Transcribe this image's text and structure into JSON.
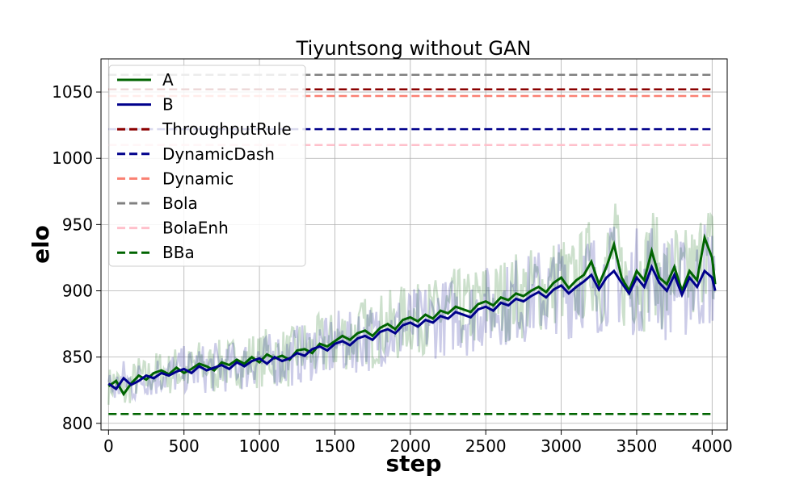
{
  "chart_data": {
    "type": "line",
    "title": "Tiyuntsong without GAN",
    "xlabel": "step",
    "ylabel": "elo",
    "xlim": [
      -50,
      4100
    ],
    "ylim": [
      795,
      1075
    ],
    "xticks": [
      0,
      500,
      1000,
      1500,
      2000,
      2500,
      3000,
      3500,
      4000
    ],
    "yticks": [
      800,
      850,
      900,
      950,
      1000,
      1050
    ],
    "grid": true,
    "legend_position": "top-left",
    "series": [
      {
        "name": "A",
        "color": "#006400",
        "style": "solid",
        "x": [
          0,
          50,
          100,
          150,
          200,
          250,
          300,
          350,
          400,
          450,
          500,
          550,
          600,
          650,
          700,
          750,
          800,
          850,
          900,
          950,
          1000,
          1050,
          1100,
          1150,
          1200,
          1250,
          1300,
          1350,
          1400,
          1450,
          1500,
          1550,
          1600,
          1650,
          1700,
          1750,
          1800,
          1850,
          1900,
          1950,
          2000,
          2050,
          2100,
          2150,
          2200,
          2250,
          2300,
          2350,
          2400,
          2450,
          2500,
          2550,
          2600,
          2650,
          2700,
          2750,
          2800,
          2850,
          2900,
          2950,
          3000,
          3050,
          3100,
          3150,
          3200,
          3250,
          3300,
          3350,
          3400,
          3450,
          3500,
          3550,
          3600,
          3650,
          3700,
          3750,
          3800,
          3850,
          3900,
          3950,
          4000,
          4020
        ],
        "y": [
          828,
          832,
          822,
          830,
          836,
          833,
          838,
          840,
          837,
          842,
          838,
          841,
          845,
          843,
          840,
          846,
          844,
          848,
          845,
          850,
          846,
          852,
          849,
          851,
          848,
          855,
          856,
          853,
          860,
          858,
          862,
          866,
          863,
          868,
          870,
          866,
          872,
          875,
          871,
          878,
          880,
          877,
          882,
          879,
          885,
          883,
          888,
          886,
          884,
          890,
          892,
          889,
          895,
          893,
          898,
          896,
          900,
          903,
          899,
          906,
          910,
          902,
          908,
          912,
          922,
          905,
          918,
          935,
          910,
          900,
          915,
          908,
          930,
          910,
          905,
          918,
          900,
          915,
          908,
          940,
          925,
          905
        ]
      },
      {
        "name": "B",
        "color": "#00008B",
        "style": "solid",
        "x": [
          0,
          50,
          100,
          150,
          200,
          250,
          300,
          350,
          400,
          450,
          500,
          550,
          600,
          650,
          700,
          750,
          800,
          850,
          900,
          950,
          1000,
          1050,
          1100,
          1150,
          1200,
          1250,
          1300,
          1350,
          1400,
          1450,
          1500,
          1550,
          1600,
          1650,
          1700,
          1750,
          1800,
          1850,
          1900,
          1950,
          2000,
          2050,
          2100,
          2150,
          2200,
          2250,
          2300,
          2350,
          2400,
          2450,
          2500,
          2550,
          2600,
          2650,
          2700,
          2750,
          2800,
          2850,
          2900,
          2950,
          3000,
          3050,
          3100,
          3150,
          3200,
          3250,
          3300,
          3350,
          3400,
          3450,
          3500,
          3550,
          3600,
          3650,
          3700,
          3750,
          3800,
          3850,
          3900,
          3950,
          4000,
          4020
        ],
        "y": [
          830,
          826,
          834,
          829,
          832,
          836,
          834,
          838,
          836,
          839,
          841,
          838,
          843,
          840,
          842,
          844,
          841,
          846,
          843,
          847,
          849,
          845,
          850,
          847,
          849,
          853,
          851,
          856,
          858,
          855,
          860,
          862,
          859,
          864,
          866,
          863,
          869,
          871,
          868,
          874,
          876,
          873,
          878,
          876,
          881,
          879,
          884,
          882,
          880,
          886,
          888,
          885,
          891,
          889,
          894,
          892,
          896,
          899,
          895,
          901,
          904,
          898,
          903,
          907,
          912,
          901,
          910,
          915,
          906,
          898,
          910,
          903,
          918,
          906,
          900,
          912,
          897,
          910,
          903,
          915,
          910,
          900
        ]
      },
      {
        "name": "ThroughputRule",
        "color": "#8B0000",
        "style": "dashed",
        "x": [
          0,
          4000
        ],
        "y": [
          1052,
          1052
        ]
      },
      {
        "name": "DynamicDash",
        "color": "#00008B",
        "style": "dashed",
        "x": [
          0,
          4000
        ],
        "y": [
          1022,
          1022
        ]
      },
      {
        "name": "Dynamic",
        "color": "#FA8072",
        "style": "dashed",
        "x": [
          0,
          4000
        ],
        "y": [
          1047,
          1047
        ]
      },
      {
        "name": "Bola",
        "color": "#808080",
        "style": "dashed",
        "x": [
          0,
          4000
        ],
        "y": [
          1063,
          1063
        ]
      },
      {
        "name": "BolaEnh",
        "color": "#FFC0CB",
        "style": "dashed",
        "x": [
          0,
          4000
        ],
        "y": [
          1010,
          1010
        ]
      },
      {
        "name": "BBa",
        "color": "#006400",
        "style": "dashed",
        "x": [
          0,
          4000
        ],
        "y": [
          807,
          807
        ]
      }
    ]
  }
}
